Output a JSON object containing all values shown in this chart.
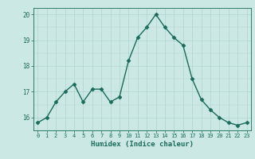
{
  "x": [
    0,
    1,
    2,
    3,
    4,
    5,
    6,
    7,
    8,
    9,
    10,
    11,
    12,
    13,
    14,
    15,
    16,
    17,
    18,
    19,
    20,
    21,
    22,
    23
  ],
  "y": [
    15.8,
    16.0,
    16.6,
    17.0,
    17.3,
    16.6,
    17.1,
    17.1,
    16.6,
    16.8,
    18.2,
    19.1,
    19.5,
    20.0,
    19.5,
    19.1,
    18.8,
    17.5,
    16.7,
    16.3,
    16.0,
    15.8,
    15.7,
    15.8
  ],
  "xlabel": "Humidex (Indice chaleur)",
  "ylim": [
    15.5,
    20.25
  ],
  "xlim": [
    -0.5,
    23.5
  ],
  "yticks": [
    16,
    17,
    18,
    19,
    20
  ],
  "xticks": [
    0,
    1,
    2,
    3,
    4,
    5,
    6,
    7,
    8,
    9,
    10,
    11,
    12,
    13,
    14,
    15,
    16,
    17,
    18,
    19,
    20,
    21,
    22,
    23
  ],
  "line_color": "#1a6b5a",
  "marker_color": "#1a6b5a",
  "bg_color": "#cce8e4",
  "grid_color": "#aed4cf",
  "axis_color": "#1a6b5a",
  "tick_label_color": "#1a6b5a",
  "xlabel_color": "#1a6b5a",
  "marker_size": 2.5,
  "line_width": 1.0
}
